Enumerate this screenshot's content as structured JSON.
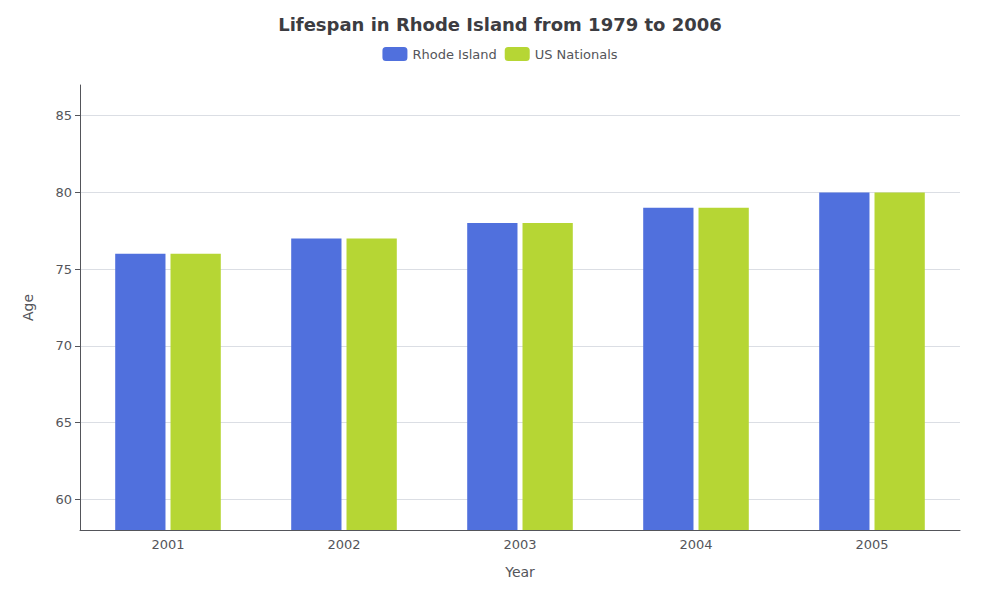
{
  "chart_data": {
    "type": "bar",
    "title": "Lifespan in Rhode Island from 1979 to 2006",
    "xlabel": "Year",
    "ylabel": "Age",
    "categories": [
      "2001",
      "2002",
      "2003",
      "2004",
      "2005"
    ],
    "series": [
      {
        "name": "Rhode Island",
        "values": [
          76,
          77,
          78,
          79,
          80
        ]
      },
      {
        "name": "US Nationals",
        "values": [
          76,
          77,
          78,
          79,
          80
        ]
      }
    ],
    "ylim": [
      58,
      87
    ],
    "yticks": [
      60,
      65,
      70,
      75,
      80,
      85
    ],
    "grid": true,
    "legend": "top"
  }
}
